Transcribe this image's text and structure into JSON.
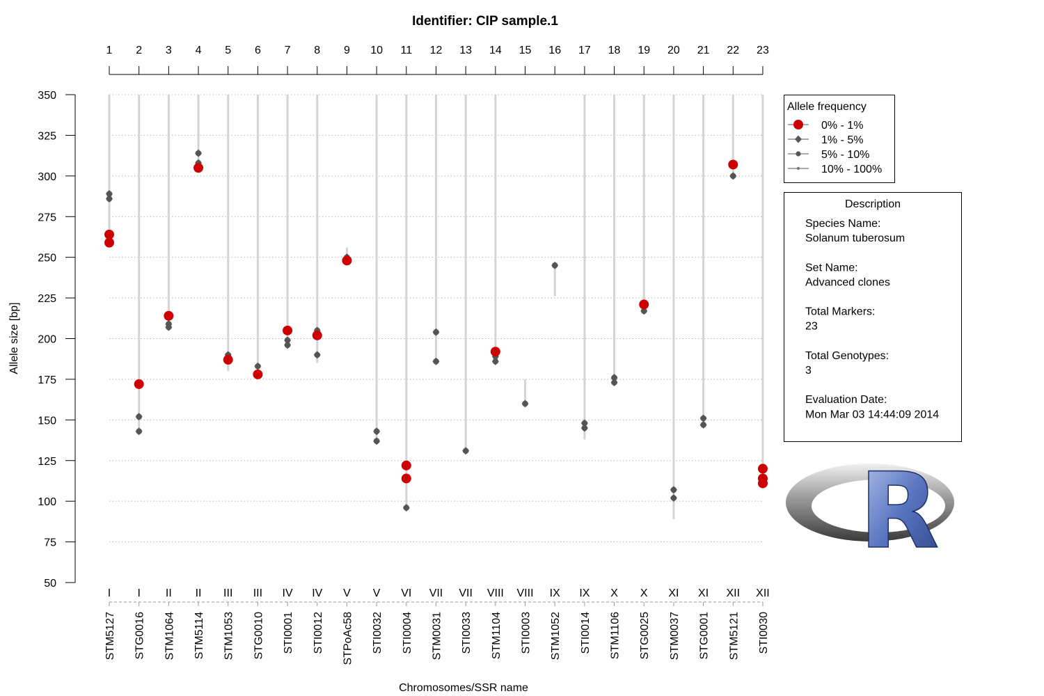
{
  "chart_data": {
    "type": "scatter",
    "title": "Identifier: CIP sample.1",
    "xlabel": "Chromosomes/SSR name",
    "ylabel": "Allele size [bp]",
    "ylim": [
      50,
      350
    ],
    "yticks": [
      50,
      75,
      100,
      125,
      150,
      175,
      200,
      225,
      250,
      275,
      300,
      325,
      350
    ],
    "grid": true,
    "top_axis_labels": [
      "1",
      "2",
      "3",
      "4",
      "5",
      "6",
      "7",
      "8",
      "9",
      "10",
      "11",
      "12",
      "13",
      "14",
      "15",
      "16",
      "17",
      "18",
      "19",
      "20",
      "21",
      "22",
      "23"
    ],
    "chromosomes": [
      "I",
      "I",
      "II",
      "II",
      "III",
      "III",
      "IV",
      "IV",
      "V",
      "V",
      "VI",
      "VII",
      "VII",
      "VIII",
      "VIII",
      "IX",
      "IX",
      "X",
      "X",
      "XI",
      "XI",
      "XII",
      "XII"
    ],
    "markers": [
      "STM5127",
      "STG0016",
      "STM1064",
      "STM5114",
      "STM1053",
      "STG0010",
      "STI0001",
      "STI0012",
      "STPoAc58",
      "STI0032",
      "STI0004",
      "STM0031",
      "STI0033",
      "STM1104",
      "STI0003",
      "STM1052",
      "STI0014",
      "STM1106",
      "STG0025",
      "STM0037",
      "STG0001",
      "STM5121",
      "STI0030"
    ],
    "size_ranges": [
      [
        259,
        350
      ],
      [
        143,
        350
      ],
      [
        207,
        350
      ],
      [
        305,
        350
      ],
      [
        180,
        350
      ],
      [
        178,
        350
      ],
      [
        196,
        350
      ],
      [
        185,
        350
      ],
      [
        246,
        256
      ],
      [
        137,
        350
      ],
      [
        96,
        350
      ],
      [
        186,
        350
      ],
      [
        131,
        350
      ],
      [
        185,
        350
      ],
      [
        160,
        175
      ],
      [
        226,
        245
      ],
      [
        138,
        350
      ],
      [
        173,
        350
      ],
      [
        216,
        350
      ],
      [
        89,
        350
      ],
      [
        147,
        350
      ],
      [
        300,
        350
      ],
      [
        111,
        350
      ]
    ],
    "legend": {
      "title": "Allele frequency",
      "position": "top-right",
      "entries": [
        {
          "label": "0% - 1%",
          "color": "#cc0000"
        },
        {
          "label": "1% - 5%",
          "color": "#555555"
        },
        {
          "label": "5% - 10%",
          "color": "#555555"
        },
        {
          "label": "10% - 100%",
          "color": "#777777"
        }
      ]
    },
    "series": [
      {
        "values": [
          {
            "x": 1,
            "y": 264
          },
          {
            "x": 1,
            "y": 259
          },
          {
            "x": 2,
            "y": 172
          },
          {
            "x": 3,
            "y": 214
          },
          {
            "x": 4,
            "y": 305
          },
          {
            "x": 5,
            "y": 187
          },
          {
            "x": 6,
            "y": 178
          },
          {
            "x": 7,
            "y": 205
          },
          {
            "x": 8,
            "y": 202
          },
          {
            "x": 9,
            "y": 248
          },
          {
            "x": 11,
            "y": 122
          },
          {
            "x": 11,
            "y": 114
          },
          {
            "x": 14,
            "y": 192
          },
          {
            "x": 19,
            "y": 221
          },
          {
            "x": 22,
            "y": 307
          },
          {
            "x": 23,
            "y": 120
          },
          {
            "x": 23,
            "y": 114
          },
          {
            "x": 23,
            "y": 111
          }
        ]
      },
      {
        "values": [
          {
            "x": 1,
            "y": 289
          },
          {
            "x": 1,
            "y": 286
          },
          {
            "x": 2,
            "y": 152
          },
          {
            "x": 2,
            "y": 143
          },
          {
            "x": 3,
            "y": 209
          },
          {
            "x": 3,
            "y": 207
          },
          {
            "x": 4,
            "y": 314
          },
          {
            "x": 4,
            "y": 308
          },
          {
            "x": 5,
            "y": 190
          },
          {
            "x": 6,
            "y": 183
          },
          {
            "x": 7,
            "y": 199
          },
          {
            "x": 7,
            "y": 196
          },
          {
            "x": 8,
            "y": 205
          },
          {
            "x": 8,
            "y": 190
          },
          {
            "x": 9,
            "y": 250
          },
          {
            "x": 10,
            "y": 143
          },
          {
            "x": 10,
            "y": 137
          },
          {
            "x": 11,
            "y": 96
          },
          {
            "x": 12,
            "y": 204
          },
          {
            "x": 12,
            "y": 186
          },
          {
            "x": 13,
            "y": 131
          },
          {
            "x": 14,
            "y": 189
          },
          {
            "x": 14,
            "y": 186
          },
          {
            "x": 15,
            "y": 160
          },
          {
            "x": 16,
            "y": 245
          },
          {
            "x": 17,
            "y": 148
          },
          {
            "x": 17,
            "y": 145
          },
          {
            "x": 18,
            "y": 176
          },
          {
            "x": 18,
            "y": 173
          },
          {
            "x": 19,
            "y": 217
          },
          {
            "x": 20,
            "y": 107
          },
          {
            "x": 20,
            "y": 102
          },
          {
            "x": 21,
            "y": 151
          },
          {
            "x": 21,
            "y": 147
          },
          {
            "x": 22,
            "y": 300
          }
        ]
      }
    ]
  },
  "description": {
    "title": "Description",
    "lines": [
      "Species Name:",
      "Solanum tuberosum",
      "",
      "Set Name:",
      "Advanced clones",
      "",
      "Total Markers:",
      "23",
      "",
      "Total Genotypes:",
      "3",
      "",
      "Evaluation Date:",
      "Mon Mar 03 14:44:09 2014"
    ]
  },
  "logo": {
    "text": "R"
  }
}
